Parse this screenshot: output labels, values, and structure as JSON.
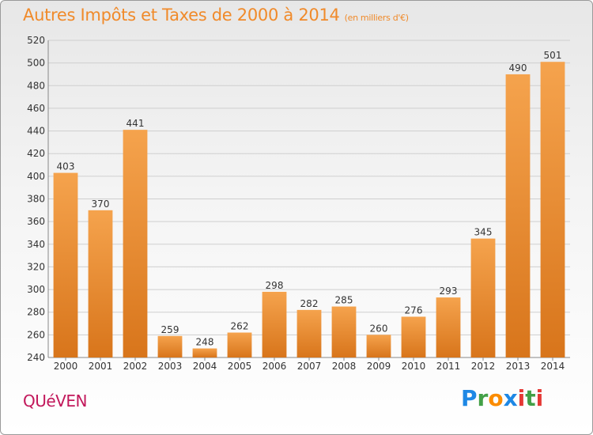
{
  "title": {
    "main": "Autres Impôts et Taxes de 2000 à 2014",
    "unit": "(en milliers d'€)"
  },
  "commune": "QUéVEN",
  "logo": {
    "text": "Proxiti",
    "letters": [
      {
        "ch": "P",
        "color": "#1e88e5"
      },
      {
        "ch": "r",
        "color": "#43a047"
      },
      {
        "ch": "o",
        "color": "#fb8c00"
      },
      {
        "ch": "x",
        "color": "#1e88e5"
      },
      {
        "ch": "i",
        "color": "#e53935"
      },
      {
        "ch": "t",
        "color": "#43a047"
      },
      {
        "ch": "i",
        "color": "#e53935"
      }
    ]
  },
  "colors": {
    "bar_top": "#f5a34d",
    "bar_bottom": "#d8751b",
    "grid": "#cfcfcf",
    "axis": "#888888"
  },
  "chart_data": {
    "type": "bar",
    "title": "Autres Impôts et Taxes de 2000 à 2014",
    "xlabel": "",
    "ylabel": "",
    "categories": [
      "2000",
      "2001",
      "2002",
      "2003",
      "2004",
      "2005",
      "2006",
      "2007",
      "2008",
      "2009",
      "2010",
      "2011",
      "2012",
      "2013",
      "2014"
    ],
    "values": [
      403,
      370,
      441,
      259,
      248,
      262,
      298,
      282,
      285,
      260,
      276,
      293,
      345,
      490,
      501
    ],
    "ylim": [
      240,
      520
    ],
    "yticks": [
      240,
      260,
      280,
      300,
      320,
      340,
      360,
      380,
      400,
      420,
      440,
      460,
      480,
      500,
      520
    ],
    "grid": true,
    "legend": "none"
  }
}
